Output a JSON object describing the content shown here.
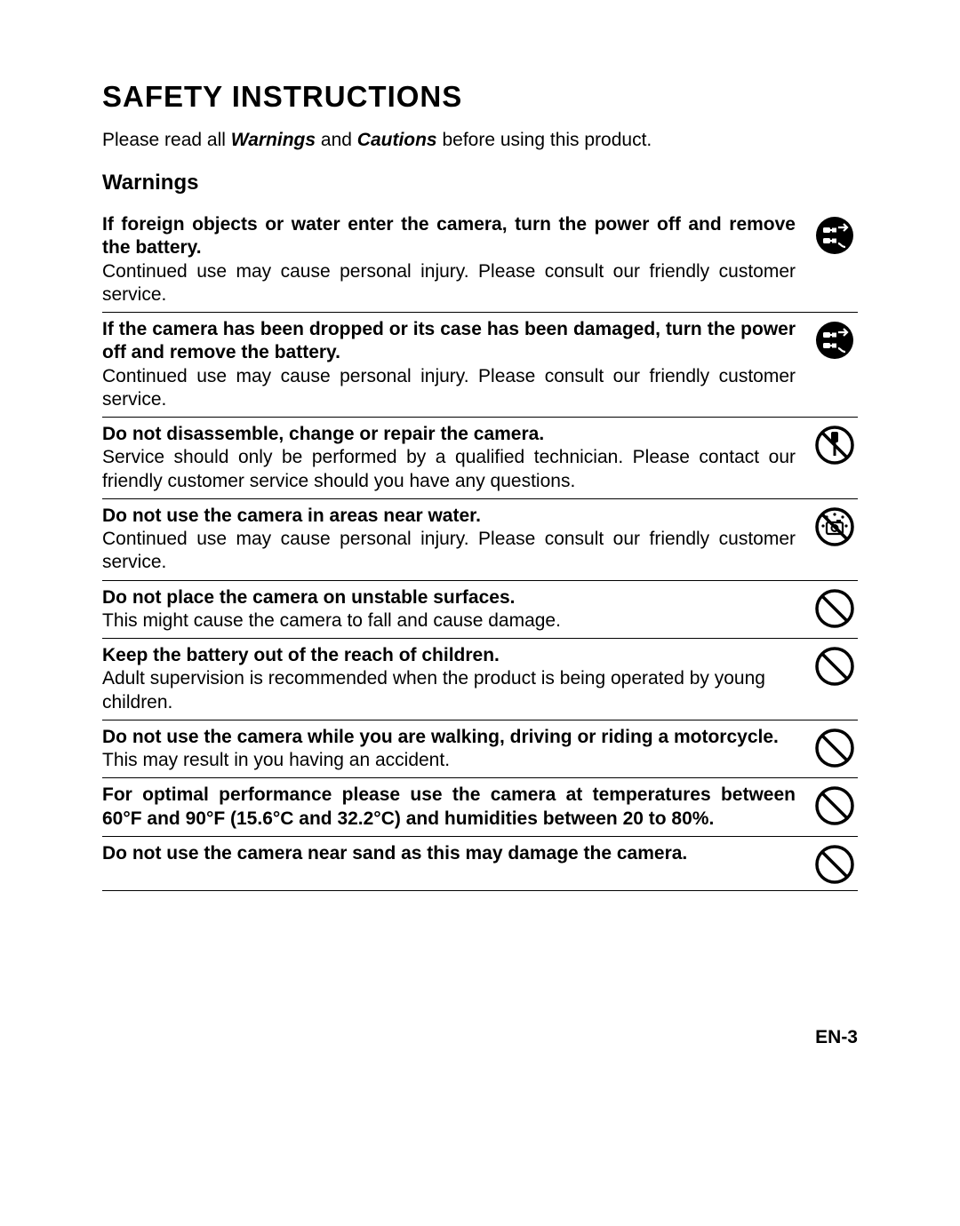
{
  "title": "SAFETY INSTRUCTIONS",
  "intro_pre": "Please read all ",
  "intro_w": "Warnings",
  "intro_mid": " and ",
  "intro_c": "Cautions",
  "intro_post": " before using this product.",
  "section": "Warnings",
  "warnings": [
    {
      "bold": "If foreign objects or water enter the camera, turn the power off and remove the battery.",
      "body": "Continued use may cause personal injury.  Please consult our friendly customer service.",
      "icon": "unplug",
      "justify_bold": true,
      "justify_body": true
    },
    {
      "bold": "If the camera has been dropped or its case has been damaged, turn the power off and remove the battery.",
      "body": "Continued use may cause personal injury.  Please consult our friendly customer service.",
      "icon": "unplug",
      "justify_bold": true,
      "justify_body": true
    },
    {
      "bold": "Do not disassemble, change or repair the camera.",
      "body": "Service should only be performed by a qualified technician.  Please  contact our friendly customer service should you have any questions.",
      "icon": "no-disassemble",
      "justify_bold": false,
      "justify_body": true
    },
    {
      "bold": "Do not use the camera in areas near water.",
      "body": "Continued use may cause personal injury. Please consult our friendly customer service.",
      "icon": "no-water",
      "justify_bold": false,
      "justify_body": true
    },
    {
      "bold": "Do not place the camera on unstable surfaces.",
      "body": "This might cause the camera to fall and cause damage.",
      "icon": "prohibit",
      "justify_bold": false,
      "justify_body": false
    },
    {
      "bold": "Keep the battery out of the reach of children.",
      "body": "Adult supervision is recommended when the product is being operated by young children.",
      "icon": "prohibit",
      "justify_bold": false,
      "justify_body": false
    },
    {
      "bold": "Do not use the camera while you are walking, driving or riding a motorcycle.",
      "body": "This may result in you having an accident.",
      "icon": "prohibit",
      "justify_bold": true,
      "justify_body": false
    },
    {
      "bold": "For optimal performance please use the camera at temperatures between 60°F and 90°F  (15.6°C and 32.2°C) and humidities between 20 to 80%.",
      "body": "",
      "icon": "prohibit",
      "justify_bold": true,
      "justify_body": false
    },
    {
      "bold": "Do not use the camera near sand as this may damage the camera.",
      "body": " ",
      "icon": "prohibit",
      "justify_bold": false,
      "justify_body": false,
      "spacer": true
    }
  ],
  "footer": "EN-3",
  "colors": {
    "text": "#000000",
    "bg": "#ffffff"
  },
  "fonts": {
    "body_size_pt": 16,
    "title_size_pt": 25,
    "section_size_pt": 18
  }
}
